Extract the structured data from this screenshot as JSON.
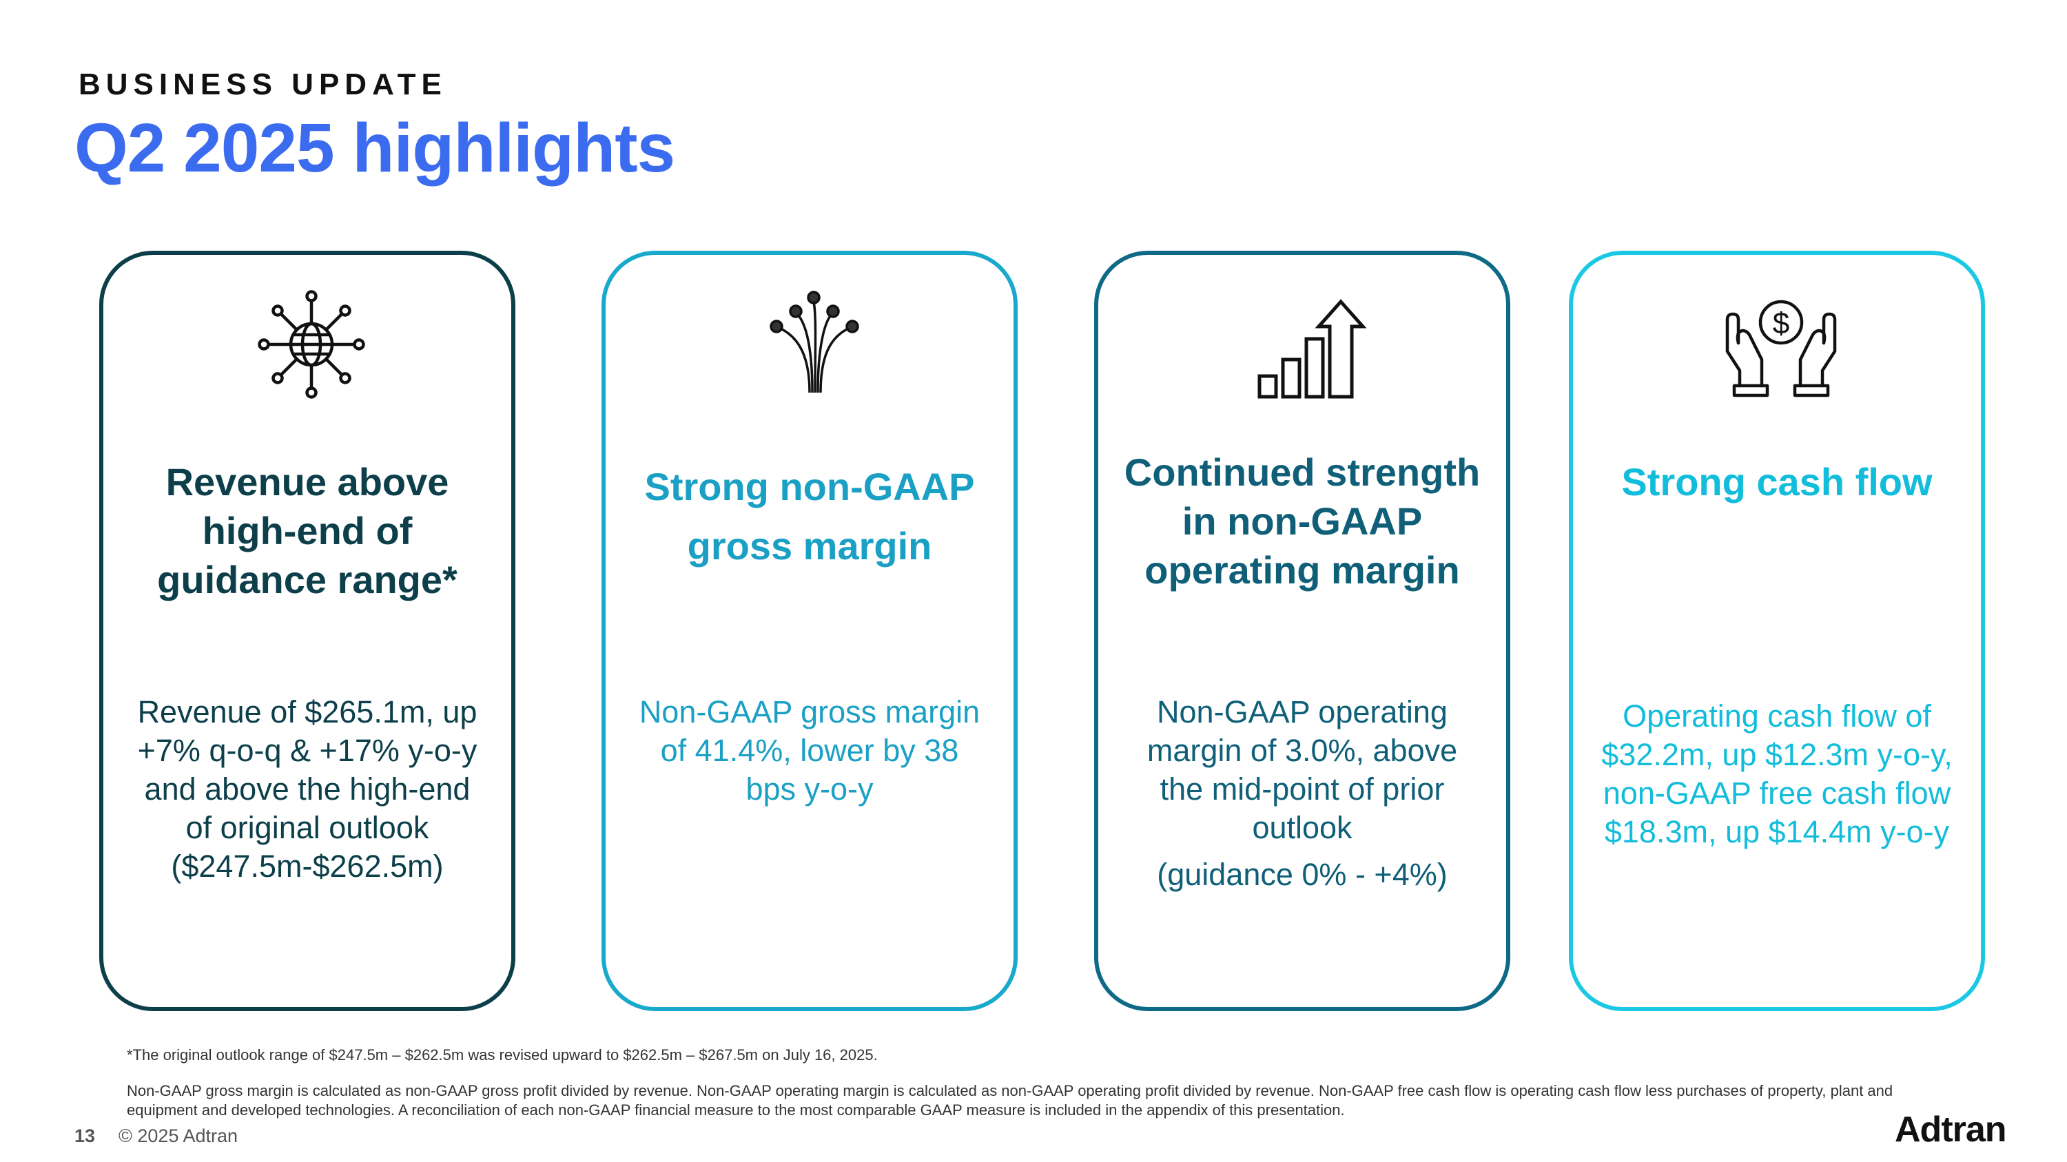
{
  "header": {
    "kicker": "BUSINESS UPDATE",
    "title": "Q2 2025 highlights"
  },
  "cards": [
    {
      "icon": "globe-network-icon",
      "heading": "Revenue above high-end of guidance range*",
      "body": "Revenue of $265.1m, up +7% q-o-q & +17% y-o-y and above the high-end of original outlook ($247.5m-$262.5m)",
      "color": "#0d3f4a"
    },
    {
      "icon": "fiber-optic-icon",
      "heading": "Strong non-GAAP gross margin",
      "body": "Non-GAAP gross margin of 41.4%, lower by 38 bps y-o-y",
      "color": "#1aa0c4"
    },
    {
      "icon": "growth-bar-chart-icon",
      "heading": "Continued strength in non-GAAP operating margin",
      "body": "Non-GAAP operating margin of 3.0%, above the mid-point of prior outlook",
      "note": "(guidance 0% - +4%)",
      "color": "#0f5f78"
    },
    {
      "icon": "hands-dollar-icon",
      "heading": "Strong cash flow",
      "body": "Operating cash flow of $32.2m, up $12.3m y-o-y, non-GAAP free cash flow $18.3m, up $14.4m y-o-y",
      "color": "#12bddb"
    }
  ],
  "footnotes": {
    "outlook": "*The original outlook range of $247.5m  – $262.5m was revised upward to $262.5m  – $267.5m on July 16, 2025.",
    "definitions": "Non-GAAP gross margin is calculated as non-GAAP gross profit divided by revenue. Non-GAAP operating margin is calculated as non-GAAP operating  profit divided by revenue. Non-GAAP free cash flow is operating cash flow less purchases of property, plant and equipment and developed technologies. A reconciliation of each non-GAAP financial measure to the most comparable GAAP measure is included in the appendix of this presentation."
  },
  "footer": {
    "page_number": "13",
    "copyright": "© 2025 Adtran",
    "logo_text": "Adtran"
  }
}
